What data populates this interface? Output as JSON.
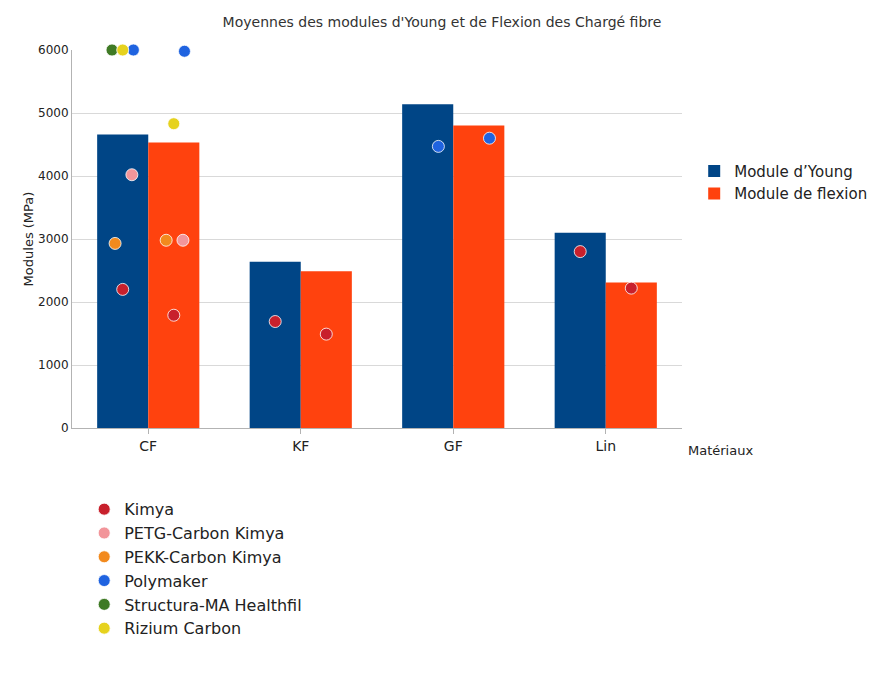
{
  "chart_data": {
    "type": "bar",
    "title": "Moyennes des modules d'Young et de Flexion des Chargé fibre",
    "x_label": "Matériaux",
    "y_label": "Modules (MPa)",
    "categories": [
      "CF",
      "KF",
      "GF",
      "Lin"
    ],
    "series": [
      {
        "name": "Module d’Young",
        "type": "bar",
        "color": "#004586",
        "values": [
          4660,
          2640,
          5140,
          3100
        ]
      },
      {
        "name": "Module de flexion",
        "type": "bar",
        "color": "#ff420e",
        "values": [
          4530,
          2490,
          4800,
          2310
        ]
      },
      {
        "name": "Kimya",
        "type": "scatter",
        "marker": "circle",
        "color": "#c8202c",
        "values": [
          [
            2200,
            1790
          ],
          [
            1690,
            1490
          ],
          [
            null,
            null
          ],
          [
            2800,
            2220
          ]
        ]
      },
      {
        "name": "PETG-Carbon Kimya",
        "type": "scatter",
        "marker": "circle",
        "color": "#f2959a",
        "values": [
          [
            4020,
            2980
          ],
          [
            null,
            null
          ],
          [
            null,
            null
          ],
          [
            null,
            null
          ]
        ]
      },
      {
        "name": "PEKK-Carbon Kimya",
        "type": "scatter",
        "marker": "circle",
        "color": "#f28a1e",
        "values": [
          [
            2930,
            2980
          ],
          [
            null,
            null
          ],
          [
            null,
            null
          ],
          [
            null,
            null
          ]
        ]
      },
      {
        "name": "Polymaker",
        "type": "scatter",
        "marker": "circle",
        "color": "#1f63e0",
        "values": [
          [
            6000,
            5980
          ],
          [
            null,
            null
          ],
          [
            4470,
            4600
          ],
          [
            null,
            null
          ]
        ]
      },
      {
        "name": "Structura-MA Healthfil",
        "type": "scatter",
        "marker": "circle",
        "color": "#3f7a25",
        "values": [
          [
            6000,
            null
          ],
          [
            null,
            null
          ],
          [
            null,
            null
          ],
          [
            null,
            null
          ]
        ]
      },
      {
        "name": "Rizium Carbon",
        "type": "scatter",
        "marker": "circle",
        "color": "#e6d21e",
        "values": [
          [
            6000,
            4830
          ],
          [
            null,
            null
          ],
          [
            null,
            null
          ],
          [
            null,
            null
          ]
        ]
      }
    ],
    "ylim": [
      0,
      6000
    ],
    "yticks": [
      0,
      1000,
      2000,
      3000,
      4000,
      5000,
      6000
    ],
    "grid": true,
    "legend": "right"
  }
}
